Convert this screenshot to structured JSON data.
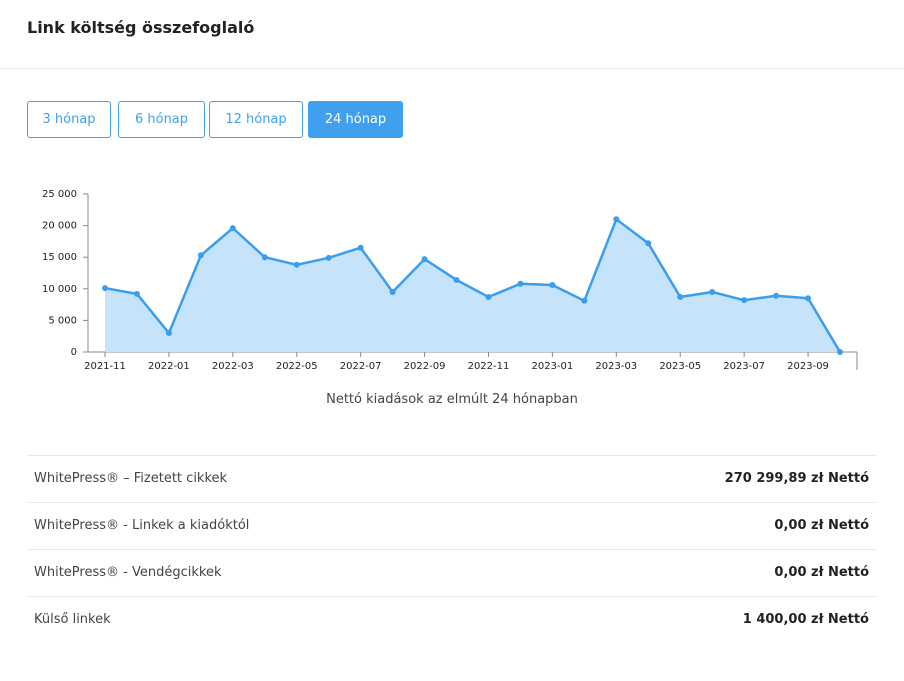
{
  "header": {
    "title": "Link költség összefoglaló"
  },
  "buttons": [
    {
      "label": "3 hónap"
    },
    {
      "label": "6 hónap"
    },
    {
      "label": "12 hónap"
    },
    {
      "label": "24 hónap",
      "active": true
    }
  ],
  "chart_data": {
    "type": "area",
    "x_label": "Nettó kiadások az elmúlt 24 hónapban",
    "categories": [
      "2021-11",
      null,
      "2022-01",
      null,
      "2022-03",
      null,
      "2022-05",
      null,
      "2022-07",
      null,
      "2022-09",
      null,
      "2022-11",
      null,
      "2023-01",
      null,
      "2023-03",
      null,
      "2023-05",
      null,
      "2023-07",
      null,
      "2023-09",
      null
    ],
    "series": [
      {
        "color": "#3b9ded",
        "fill": "#c5e3fa",
        "values": [
          10100,
          9200,
          3000,
          15300,
          19600,
          15000,
          13800,
          14900,
          16500,
          9500,
          14700,
          11400,
          8700,
          10800,
          10600,
          8100,
          21000,
          17200,
          8700,
          9500,
          8200,
          8900,
          8500,
          0
        ]
      }
    ],
    "ylim": [
      0,
      25000
    ],
    "yticks": [
      0,
      {
        "value": 5000,
        "label": "5 000"
      },
      {
        "value": 10000,
        "label": "10 000"
      },
      {
        "value": 15000,
        "label": "15 000"
      },
      {
        "value": 20000,
        "label": "20 000"
      },
      {
        "value": 25000,
        "label": "25 000"
      }
    ],
    "grid": false
  },
  "table": {
    "rows": [
      [
        "WhitePress® – Fizetett cikkek",
        "270 299,89 zł Nettó"
      ],
      [
        "WhitePress® - Linkek a kiadóktól",
        "0,00 zł Nettó"
      ],
      [
        "WhitePress® - Vendégcikkek",
        "0,00 zł Nettó"
      ],
      [
        "Külső linkek",
        "1 400,00 zł Nettó"
      ]
    ]
  }
}
